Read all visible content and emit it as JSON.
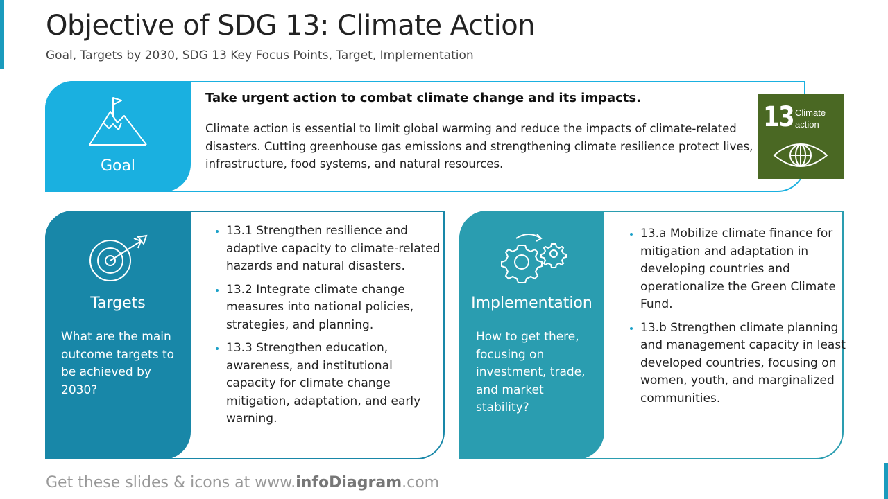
{
  "header": {
    "title": "Objective of SDG 13: Climate Action",
    "subtitle": "Goal, Targets by 2030, SDG 13 Key Focus Points, Target, Implementation"
  },
  "goal": {
    "label": "Goal",
    "heading": "Take urgent action to combat climate change and its impacts.",
    "text": "Climate action is essential to limit global warming and reduce the impacts of climate-related disasters. Cutting greenhouse gas emissions and strengthening climate resilience protect lives, infrastructure, food systems, and natural resources."
  },
  "badge": {
    "number": "13",
    "label": "Climate action"
  },
  "targets": {
    "label": "Targets",
    "question": "What are the main outcome targets to be achieved by 2030?",
    "items": [
      "13.1 Strengthen resilience and adaptive capacity to climate-related hazards and natural disasters.",
      "13.2 Integrate climate change measures into national policies, strategies, and planning.",
      "13.3 Strengthen education, awareness, and institutional capacity for climate change mitigation, adaptation, and early warning."
    ]
  },
  "implementation": {
    "label": "Implementation",
    "question": "How to get there, focusing on investment, trade, and market stability?",
    "items": [
      "13.a Mobilize climate finance for mitigation and adaptation in developing countries and operationalize the Green Climate Fund.",
      "13.b Strengthen climate planning and management capacity in least developed countries, focusing on women, youth, and marginalized communities."
    ]
  },
  "footer": {
    "prefix": "Get these slides & icons at www.",
    "brand": "infoDiagram",
    "suffix": ".com"
  }
}
